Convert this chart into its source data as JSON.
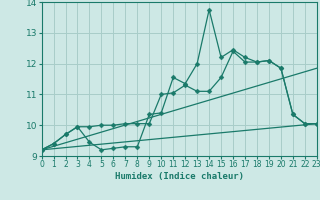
{
  "x_ticks": [
    0,
    1,
    2,
    3,
    4,
    5,
    6,
    7,
    8,
    9,
    10,
    11,
    12,
    13,
    14,
    15,
    16,
    17,
    18,
    19,
    20,
    21,
    22,
    23
  ],
  "ylim": [
    9,
    14
  ],
  "xlim": [
    0,
    23
  ],
  "yticks": [
    9,
    10,
    11,
    12,
    13,
    14
  ],
  "xlabel": "Humidex (Indice chaleur)",
  "bg_color": "#cde8e5",
  "grid_color": "#a8cdc9",
  "line_color": "#1a7a6a",
  "line1_x": [
    0,
    1,
    2,
    3,
    4,
    5,
    6,
    7,
    8,
    9,
    10,
    11,
    12,
    13,
    14,
    15,
    16,
    17,
    18,
    19,
    20,
    21,
    22,
    23
  ],
  "line1_y": [
    9.2,
    9.4,
    9.7,
    9.95,
    9.45,
    9.2,
    9.25,
    9.3,
    9.3,
    10.35,
    10.4,
    11.55,
    11.35,
    12.0,
    13.75,
    12.2,
    12.45,
    12.2,
    12.05,
    12.1,
    11.85,
    10.35,
    10.05,
    10.05
  ],
  "line2_x": [
    0,
    1,
    2,
    3,
    4,
    5,
    6,
    7,
    8,
    9,
    10,
    11,
    12,
    13,
    14,
    15,
    16,
    17,
    18,
    19,
    20,
    21,
    22,
    23
  ],
  "line2_y": [
    9.2,
    9.4,
    9.7,
    9.95,
    9.95,
    10.0,
    10.0,
    10.05,
    10.05,
    10.05,
    11.0,
    11.05,
    11.3,
    11.1,
    11.1,
    11.55,
    12.4,
    12.05,
    12.05,
    12.1,
    11.85,
    10.35,
    10.05,
    10.05
  ],
  "line3_x": [
    0,
    23
  ],
  "line3_y": [
    9.2,
    10.05
  ],
  "line4_x": [
    0,
    23
  ],
  "line4_y": [
    9.2,
    11.85
  ]
}
